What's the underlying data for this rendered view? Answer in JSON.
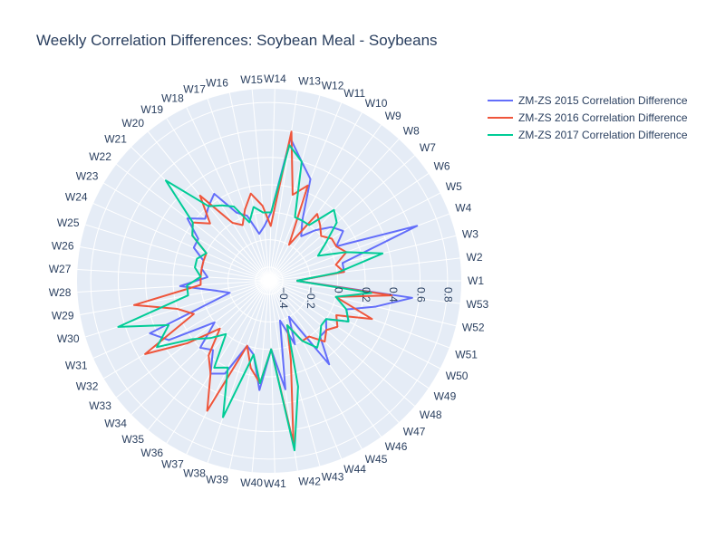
{
  "chart_data": {
    "type": "line",
    "title": "Weekly Correlation Differences: Soybean Meal - Soybeans",
    "angular_direction": "counterclockwise",
    "rotation_degrees": 0,
    "radial_range": [
      -0.5,
      0.9
    ],
    "radial_ticks": [
      -0.4,
      -0.2,
      0,
      0.2,
      0.4,
      0.6,
      0.8
    ],
    "radial_tick_labels": [
      "−0.4",
      "−0.2",
      "0",
      "0.2",
      "0.4",
      "0.6",
      "0.8"
    ],
    "grid": true,
    "legend_position": "top-right",
    "categories": [
      "W1",
      "W2",
      "W3",
      "W4",
      "W5",
      "W6",
      "W7",
      "W8",
      "W9",
      "W10",
      "W11",
      "W12",
      "W13",
      "W14",
      "W15",
      "W16",
      "W17",
      "W18",
      "W19",
      "W20",
      "W21",
      "W22",
      "W23",
      "W24",
      "W25",
      "W26",
      "W27",
      "W28",
      "W29",
      "W30",
      "W31",
      "W32",
      "W33",
      "W34",
      "W35",
      "W36",
      "W37",
      "W38",
      "W39",
      "W40",
      "W41",
      "W42",
      "W43",
      "W44",
      "W45",
      "W46",
      "W47",
      "W48",
      "W49",
      "W50",
      "W51",
      "W52",
      "W53"
    ],
    "series": [
      {
        "name": "ZM-ZS 2015 Correlation Difference",
        "color": "#636efa",
        "values": [
          -0.3,
          0.05,
          0.05,
          0.65,
          0.05,
          0.15,
          0.1,
          0.0,
          -0.1,
          0.0,
          0.3,
          0.4,
          0.55,
          0.0,
          -0.1,
          -0.15,
          0.0,
          0.05,
          0.25,
          0.2,
          0.15,
          0.25,
          0.1,
          0.1,
          0.0,
          0.0,
          -0.05,
          0.15,
          -0.1,
          -0.2,
          0.45,
          0.35,
          0.0,
          0.2,
          0.15,
          0.3,
          0.25,
          0.0,
          0.05,
          0.3,
          0.0,
          0.3,
          -0.2,
          0.0,
          -0.2,
          0.25,
          0.05,
          0.05,
          0.0,
          0.15,
          0.1,
          0.3,
          0.55
        ]
      },
      {
        "name": "ZM-ZS 2016 Correlation Difference",
        "color": "#ef553b",
        "values": [
          -0.3,
          0.05,
          0.0,
          0.1,
          0.05,
          0.05,
          0.0,
          0.05,
          0.1,
          -0.2,
          0.25,
          0.15,
          0.6,
          -0.1,
          0.05,
          0.15,
          0.05,
          -0.05,
          0.0,
          0.3,
          0.1,
          0.2,
          0.15,
          0.0,
          0.0,
          0.0,
          0.0,
          0.0,
          0.5,
          0.2,
          0.1,
          0.55,
          0.25,
          0.0,
          0.2,
          0.3,
          0.55,
          0.0,
          0.15,
          0.25,
          0.0,
          0.7,
          0.1,
          -0.15,
          0.0,
          0.0,
          0.1,
          0.05,
          0.1,
          0.05,
          0.3,
          0.0,
          0.4
        ]
      },
      {
        "name": "ZM-ZS 2017 Correlation Difference",
        "color": "#00cc96",
        "values": [
          -0.3,
          0.0,
          0.35,
          0.1,
          -0.1,
          0.0,
          0.15,
          0.2,
          0.0,
          0.0,
          0.0,
          0.4,
          0.5,
          0.0,
          0.0,
          0.05,
          -0.05,
          0.1,
          0.15,
          0.2,
          0.55,
          0.2,
          0.15,
          0.0,
          0.05,
          0.05,
          0.0,
          0.1,
          0.1,
          0.65,
          0.3,
          0.45,
          0.2,
          0.1,
          0.0,
          0.25,
          0.2,
          0.55,
          0.05,
          0.25,
          0.0,
          0.75,
          0.3,
          -0.15,
          0.0,
          0.1,
          0.05,
          0.0,
          0.0,
          0.15,
          0.1,
          0.0,
          0.25
        ]
      }
    ]
  }
}
